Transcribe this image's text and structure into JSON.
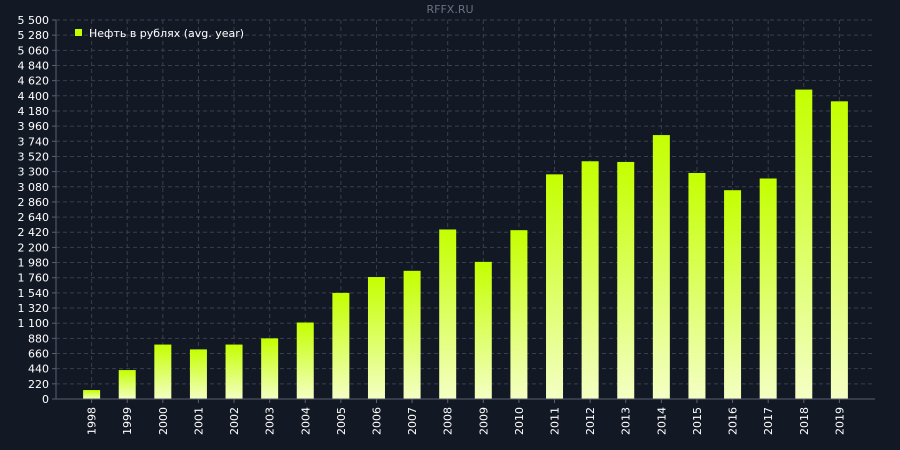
{
  "watermark": "RFFX.RU",
  "chart_data": {
    "type": "bar",
    "title": "",
    "xlabel": "",
    "ylabel": "",
    "categories": [
      "1998",
      "1999",
      "2000",
      "2001",
      "2002",
      "2003",
      "2004",
      "2005",
      "2006",
      "2007",
      "2008",
      "2009",
      "2010",
      "2011",
      "2012",
      "2013",
      "2014",
      "2015",
      "2016",
      "2017",
      "2018",
      "2019"
    ],
    "series": [
      {
        "name": "Нефть в рублях (avg. year)",
        "values": [
          130,
          420,
          790,
          720,
          790,
          880,
          1110,
          1540,
          1770,
          1860,
          2460,
          1990,
          2450,
          3260,
          3450,
          3440,
          3830,
          3280,
          3030,
          3200,
          4490,
          4320
        ]
      }
    ],
    "yticks": [
      "0",
      "220",
      "440",
      "660",
      "880",
      "1 100",
      "1 320",
      "1 540",
      "1 760",
      "1 980",
      "2 200",
      "2 420",
      "2 640",
      "2 860",
      "3 080",
      "3 300",
      "3 520",
      "3 740",
      "3 960",
      "4 180",
      "4 400",
      "4 620",
      "4 840",
      "5 060",
      "5 280",
      "5 500"
    ],
    "ylim": [
      0,
      5500
    ],
    "grid": true,
    "legend_position": "top-left",
    "colors": {
      "background": "#131825",
      "bar_top": "#c4ff00",
      "bar_bottom": "#f4ffc4",
      "grid": "#3a3f4c",
      "axis": "#5a6070",
      "legend_swatch": "#c4ff00"
    }
  }
}
